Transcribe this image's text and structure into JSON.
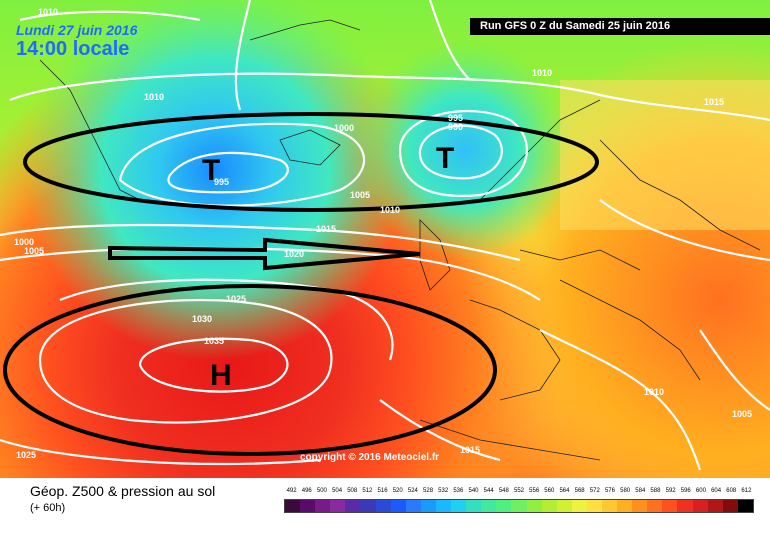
{
  "header": {
    "date": "Lundi 27 juin 2016",
    "time": "14:00 locale",
    "run": "Run GFS 0 Z du Samedi 25 juin 2016"
  },
  "copyright": "copyright © 2016 Meteociel.fr",
  "footer": {
    "title": "Géop. Z500 & pression au sol",
    "subtitle": "(+ 60h)"
  },
  "scale": [
    "492",
    "496",
    "500",
    "504",
    "508",
    "512",
    "516",
    "520",
    "524",
    "528",
    "532",
    "536",
    "540",
    "544",
    "548",
    "552",
    "556",
    "560",
    "564",
    "568",
    "572",
    "576",
    "580",
    "584",
    "588",
    "592",
    "596",
    "600",
    "604",
    "608",
    "612"
  ],
  "scale_colors": [
    "#3b0a3b",
    "#5a0a6a",
    "#7a1a8a",
    "#8a2aa0",
    "#5a2aa8",
    "#3a3ab8",
    "#2a4ad8",
    "#1a5aff",
    "#2a7aff",
    "#1a9aff",
    "#1ab8ff",
    "#20d0f0",
    "#30e0c0",
    "#40e8a0",
    "#50f080",
    "#70f060",
    "#90f040",
    "#b0f030",
    "#d0f030",
    "#f0f040",
    "#ffe040",
    "#ffc830",
    "#ffb020",
    "#ff9020",
    "#ff7020",
    "#ff5020",
    "#f03020",
    "#d82020",
    "#b01818",
    "#800c0c",
    "#000000"
  ],
  "pressure_labels": [
    {
      "id": "p1010a",
      "text": "1010"
    },
    {
      "id": "p1010b",
      "text": "1010"
    },
    {
      "id": "p1010c",
      "text": "1010"
    },
    {
      "id": "p1015a",
      "text": "1015"
    },
    {
      "id": "p1000a",
      "text": "1000"
    },
    {
      "id": "p995a",
      "text": "995"
    },
    {
      "id": "p995b",
      "text": "995"
    },
    {
      "id": "p990a",
      "text": "990"
    },
    {
      "id": "p1005a",
      "text": "1005"
    },
    {
      "id": "p1010d",
      "text": "1010"
    },
    {
      "id": "p1015b",
      "text": "1015"
    },
    {
      "id": "p1000b",
      "text": "1000"
    },
    {
      "id": "p1005b",
      "text": "1005"
    },
    {
      "id": "p1020a",
      "text": "1020"
    },
    {
      "id": "p1025a",
      "text": "1025"
    },
    {
      "id": "p1030a",
      "text": "1030"
    },
    {
      "id": "p1035a",
      "text": "1035"
    },
    {
      "id": "p1025b",
      "text": "1025"
    },
    {
      "id": "p1015c",
      "text": "1015"
    },
    {
      "id": "p1010e",
      "text": "1010"
    },
    {
      "id": "p1005c",
      "text": "1005"
    }
  ],
  "markers": {
    "low": "T",
    "high": "H"
  }
}
